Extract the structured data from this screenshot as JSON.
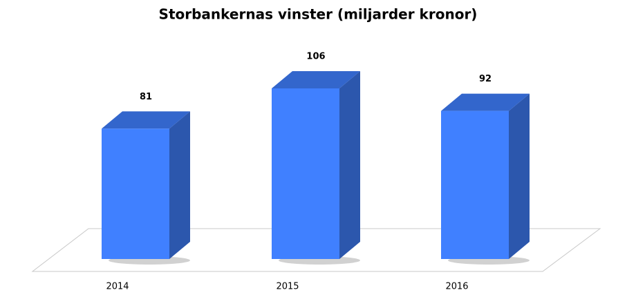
{
  "chart_data": {
    "type": "bar3d",
    "title": "Storbankernas vinster (miljarder kronor)",
    "categories": [
      "2014",
      "2015",
      "2016"
    ],
    "values": [
      81,
      106,
      92
    ],
    "color": "#4080ff"
  }
}
